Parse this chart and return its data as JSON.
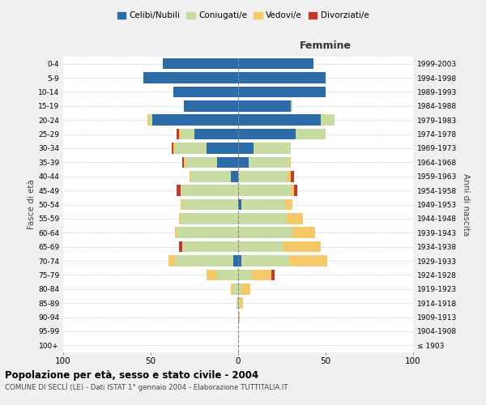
{
  "age_groups": [
    "100+",
    "95-99",
    "90-94",
    "85-89",
    "80-84",
    "75-79",
    "70-74",
    "65-69",
    "60-64",
    "55-59",
    "50-54",
    "45-49",
    "40-44",
    "35-39",
    "30-34",
    "25-29",
    "20-24",
    "15-19",
    "10-14",
    "5-9",
    "0-4"
  ],
  "birth_years": [
    "≤ 1903",
    "1904-1908",
    "1909-1913",
    "1914-1918",
    "1919-1923",
    "1924-1928",
    "1929-1933",
    "1934-1938",
    "1939-1943",
    "1944-1948",
    "1949-1953",
    "1954-1958",
    "1959-1963",
    "1964-1968",
    "1969-1973",
    "1974-1978",
    "1979-1983",
    "1984-1988",
    "1989-1993",
    "1994-1998",
    "1999-2003"
  ],
  "males": {
    "celibi": [
      0,
      0,
      0,
      0,
      0,
      0,
      3,
      0,
      0,
      0,
      0,
      0,
      4,
      12,
      18,
      25,
      49,
      31,
      37,
      54,
      43
    ],
    "coniugati": [
      0,
      0,
      0,
      1,
      3,
      12,
      33,
      32,
      35,
      33,
      32,
      33,
      23,
      18,
      18,
      8,
      2,
      0,
      0,
      0,
      0
    ],
    "vedovi": [
      0,
      0,
      0,
      0,
      1,
      6,
      4,
      0,
      1,
      1,
      1,
      0,
      1,
      1,
      1,
      1,
      1,
      0,
      0,
      0,
      0
    ],
    "divorziati": [
      0,
      0,
      0,
      0,
      0,
      0,
      0,
      2,
      0,
      0,
      0,
      2,
      0,
      1,
      1,
      1,
      0,
      0,
      0,
      0,
      0
    ]
  },
  "females": {
    "nubili": [
      0,
      0,
      0,
      0,
      0,
      0,
      2,
      0,
      0,
      0,
      2,
      0,
      0,
      6,
      9,
      33,
      47,
      30,
      50,
      50,
      43
    ],
    "coniugate": [
      0,
      0,
      0,
      1,
      2,
      8,
      27,
      26,
      31,
      28,
      25,
      30,
      28,
      23,
      21,
      17,
      8,
      1,
      0,
      0,
      0
    ],
    "vedove": [
      0,
      0,
      1,
      2,
      5,
      11,
      22,
      21,
      13,
      9,
      4,
      2,
      2,
      1,
      0,
      0,
      0,
      0,
      0,
      0,
      0
    ],
    "divorziate": [
      0,
      0,
      0,
      0,
      0,
      2,
      0,
      0,
      0,
      0,
      0,
      2,
      2,
      0,
      0,
      0,
      0,
      0,
      0,
      0,
      0
    ]
  },
  "colors": {
    "celibi": "#2b6ca8",
    "coniugati": "#c8dba3",
    "vedovi": "#f5c96a",
    "divorziati": "#c0392b"
  },
  "title": "Popolazione per età, sesso e stato civile - 2004",
  "subtitle": "COMUNE DI SECLÌ (LE) - Dati ISTAT 1° gennaio 2004 - Elaborazione TUTTITALIA.IT",
  "xlabel_right": "Femmine",
  "ylabel_left": "Fasce di età",
  "ylabel_right": "Anni di nascita",
  "xlim": 100,
  "bg_color": "#f0f0f0",
  "plot_bg_color": "#ffffff",
  "legend_labels": [
    "Celibi/Nubili",
    "Coniugati/e",
    "Vedovi/e",
    "Divorziati/e"
  ]
}
